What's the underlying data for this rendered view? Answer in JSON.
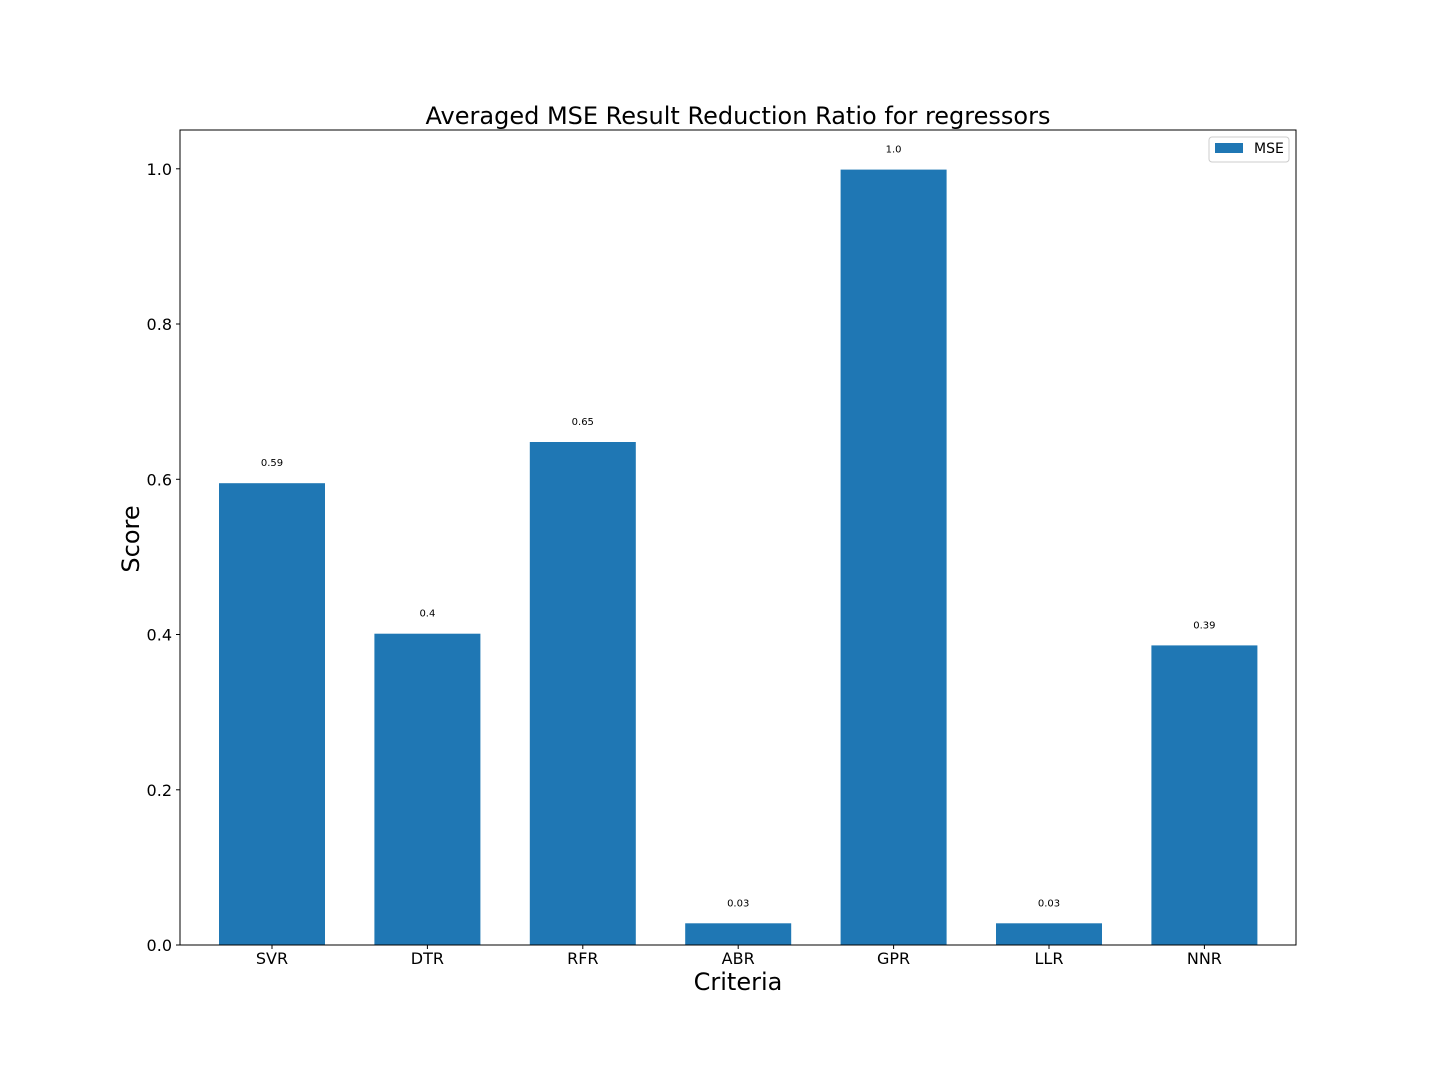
{
  "chart_data": {
    "type": "bar",
    "title": "Averaged MSE Result Reduction Ratio for regressors",
    "xlabel": "Criteria",
    "ylabel": "Score",
    "categories": [
      "SVR",
      "DTR",
      "RFR",
      "ABR",
      "GPR",
      "LLR",
      "NNR"
    ],
    "series": [
      {
        "name": "MSE",
        "values": [
          0.595,
          0.401,
          0.648,
          0.028,
          0.999,
          0.028,
          0.386
        ],
        "color": "#1f77b4"
      }
    ],
    "data_labels": [
      "0.59",
      "0.4",
      "0.65",
      "0.03",
      "1.0",
      "0.03",
      "0.39"
    ],
    "ylim": [
      0,
      1.05
    ],
    "yticks": [
      0.0,
      0.2,
      0.4,
      0.6,
      0.8,
      1.0
    ],
    "ytick_labels": [
      "0.0",
      "0.2",
      "0.4",
      "0.6",
      "0.8",
      "1.0"
    ],
    "grid": false,
    "legend": {
      "position": "top-right",
      "entries": [
        "MSE"
      ]
    }
  }
}
